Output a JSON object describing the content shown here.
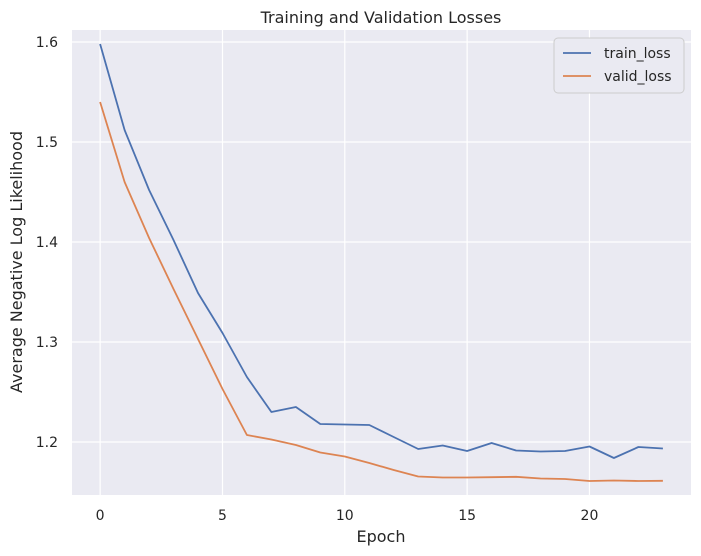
{
  "chart_data": {
    "type": "line",
    "title": "Training and Validation Losses",
    "xlabel": "Epoch",
    "ylabel": "Average Negative Log Likelihood",
    "xlim": [
      -1.15,
      24.15
    ],
    "ylim": [
      1.147,
      1.612
    ],
    "xticks": [
      0,
      5,
      10,
      15,
      20
    ],
    "yticks": [
      1.2,
      1.3,
      1.4,
      1.5,
      1.6
    ],
    "ytick_labels": [
      "1.2",
      "1.3",
      "1.4",
      "1.5",
      "1.6"
    ],
    "grid": true,
    "legend_position": "top-right",
    "x": [
      0,
      1,
      2,
      3,
      4,
      5,
      6,
      7,
      8,
      9,
      10,
      11,
      12,
      13,
      14,
      15,
      16,
      17,
      18,
      19,
      20,
      21,
      22,
      23
    ],
    "series": [
      {
        "name": "train_loss",
        "color": "#4c72b0",
        "values": [
          1.598,
          1.512,
          1.452,
          1.402,
          1.349,
          1.309,
          1.265,
          1.23,
          1.235,
          1.218,
          1.2175,
          1.217,
          1.205,
          1.193,
          1.1965,
          1.191,
          1.199,
          1.1915,
          1.1905,
          1.191,
          1.1955,
          1.184,
          1.195,
          1.1935
        ]
      },
      {
        "name": "valid_loss",
        "color": "#dd8452",
        "values": [
          1.54,
          1.46,
          1.404,
          1.353,
          1.303,
          1.253,
          1.207,
          1.2025,
          1.197,
          1.1895,
          1.1855,
          1.179,
          1.172,
          1.1655,
          1.1645,
          1.1645,
          1.1648,
          1.1652,
          1.1635,
          1.163,
          1.161,
          1.1615,
          1.161,
          1.1612
        ]
      }
    ]
  }
}
